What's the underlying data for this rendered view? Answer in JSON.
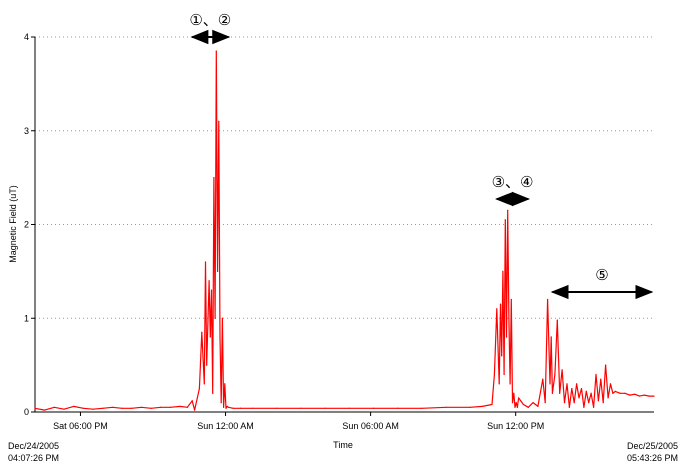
{
  "chart_data": {
    "type": "line",
    "title": "",
    "xlabel": "Time",
    "ylabel": "Magnetic Field (uT)",
    "ylim": [
      0,
      4
    ],
    "y_ticks": [
      "0",
      "1",
      "2",
      "3",
      "4"
    ],
    "x_ticks": [
      "Sat 06:00 PM",
      "Sun 12:00 AM",
      "Sun 06:00 AM",
      "Sun 12:00 PM"
    ],
    "x_tick_hours": [
      1.88,
      7.88,
      13.88,
      19.88
    ],
    "x_range_hours": [
      0,
      25.6
    ],
    "x_start": "Dec/24/2005 04:07:26 PM",
    "x_end": "Dec/25/2005 05:43:26 PM",
    "x_start_label": {
      "date": "Dec/24/2005",
      "time": "04:07:26 PM"
    },
    "x_end_label": {
      "date": "Dec/25/2005",
      "time": "05:43:26 PM"
    },
    "grid": "horizontal dotted",
    "line_color": "#ff0000",
    "series": [
      {
        "x_hours": [
          0,
          0.4,
          0.8,
          1.2,
          1.6,
          2.0,
          2.4,
          2.8,
          3.2,
          3.6,
          4.0,
          4.4,
          4.8,
          5.2,
          5.6,
          6.0,
          6.3,
          6.5,
          6.6,
          6.8,
          6.9,
          7.0,
          7.05,
          7.1,
          7.2,
          7.25,
          7.3,
          7.35,
          7.4,
          7.45,
          7.5,
          7.55,
          7.6,
          7.65,
          7.7,
          7.75,
          7.8,
          7.85,
          7.9,
          7.95,
          8.0,
          8.2,
          8.5,
          9,
          10,
          11,
          12,
          13,
          14,
          15,
          16,
          17,
          18,
          18.5,
          18.9,
          19.0,
          19.1,
          19.2,
          19.25,
          19.3,
          19.35,
          19.4,
          19.45,
          19.5,
          19.55,
          19.6,
          19.65,
          19.7,
          19.75,
          19.8,
          19.85,
          19.9,
          19.95,
          20.0,
          20.2,
          20.4,
          20.6,
          20.8,
          21.0,
          21.1,
          21.2,
          21.3,
          21.35,
          21.4,
          21.5,
          21.6,
          21.7,
          21.8,
          21.9,
          22.0,
          22.1,
          22.2,
          22.3,
          22.4,
          22.5,
          22.6,
          22.7,
          22.8,
          22.9,
          23.0,
          23.1,
          23.2,
          23.3,
          23.4,
          23.5,
          23.6,
          23.7,
          23.8,
          23.9,
          24.0,
          24.2,
          24.4,
          24.6,
          24.8,
          25.0,
          25.2,
          25.4,
          25.6
        ],
        "values": [
          0.04,
          0.02,
          0.05,
          0.03,
          0.06,
          0.04,
          0.03,
          0.04,
          0.05,
          0.04,
          0.04,
          0.05,
          0.04,
          0.05,
          0.05,
          0.06,
          0.05,
          0.12,
          0.02,
          0.25,
          0.85,
          0.3,
          1.6,
          0.5,
          1.4,
          0.8,
          1.3,
          0.2,
          2.5,
          1.0,
          3.85,
          1.5,
          3.1,
          0.8,
          0.1,
          1.0,
          0.05,
          0.3,
          0.04,
          0.06,
          0.05,
          0.04,
          0.04,
          0.04,
          0.04,
          0.04,
          0.04,
          0.04,
          0.04,
          0.04,
          0.04,
          0.05,
          0.05,
          0.06,
          0.08,
          0.4,
          1.1,
          0.3,
          1.15,
          0.6,
          1.5,
          0.4,
          2.05,
          0.8,
          2.15,
          1.0,
          0.3,
          1.2,
          0.1,
          0.2,
          0.05,
          0.1,
          0.05,
          0.15,
          0.08,
          0.05,
          0.1,
          0.06,
          0.35,
          0.1,
          1.2,
          0.3,
          0.8,
          0.2,
          0.4,
          0.98,
          0.2,
          0.45,
          0.1,
          0.3,
          0.05,
          0.25,
          0.1,
          0.3,
          0.15,
          0.25,
          0.05,
          0.22,
          0.1,
          0.2,
          0.05,
          0.4,
          0.12,
          0.35,
          0.1,
          0.5,
          0.15,
          0.3,
          0.2,
          0.22,
          0.2,
          0.2,
          0.18,
          0.19,
          0.17,
          0.18,
          0.17,
          0.17
        ]
      }
    ],
    "annotations": [
      {
        "label": "①、②",
        "from_hours": 6.5,
        "to_hours": 8.0
      },
      {
        "label": "③、④",
        "from_hours": 19.1,
        "to_hours": 20.4
      },
      {
        "label": "⑤",
        "from_hours": 21.4,
        "to_hours": 25.5
      }
    ]
  }
}
